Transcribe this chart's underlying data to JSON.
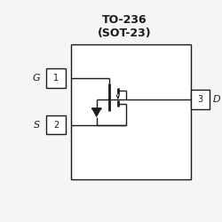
{
  "title_line1": "TO-236",
  "title_line2": "(SOT-23)",
  "title_fontsize": 9,
  "title_fontweight": "bold",
  "bg_color": "#f5f5f5",
  "line_color": "#1a1a1a",
  "label_G": "G",
  "label_S": "S",
  "label_D": "D",
  "label_1": "1",
  "label_2": "2",
  "label_3": "3",
  "fig_width": 2.5,
  "fig_height": 2.5,
  "dpi": 100
}
